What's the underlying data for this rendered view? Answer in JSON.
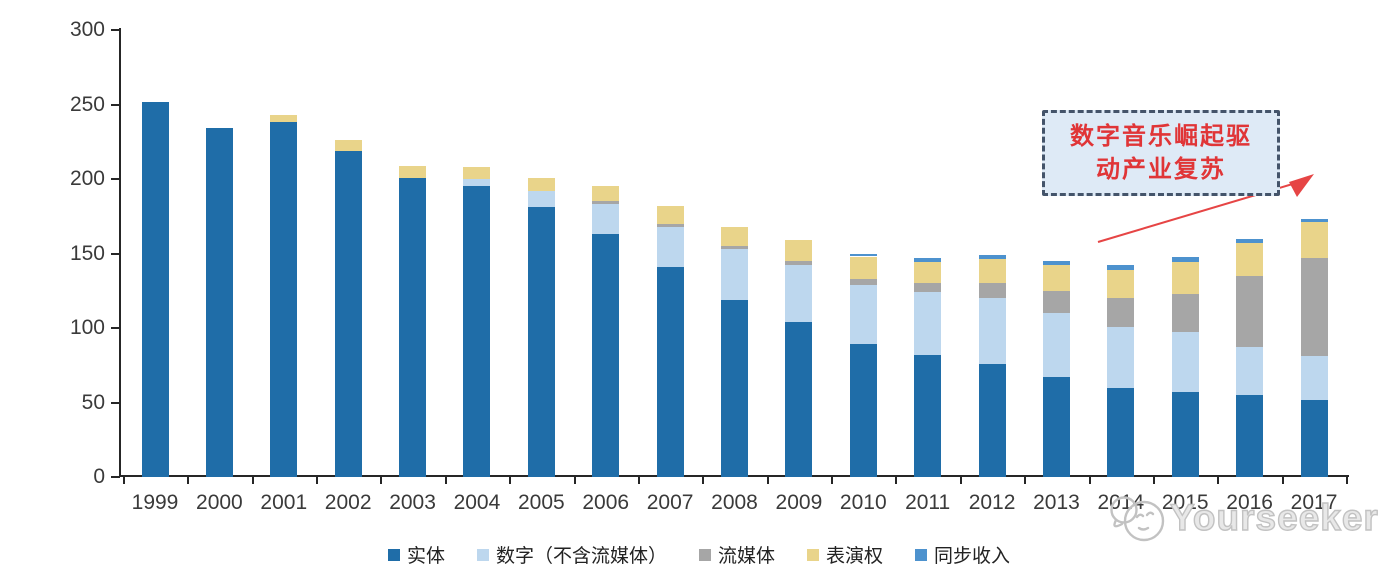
{
  "chart_data": {
    "type": "bar",
    "stacked": true,
    "title": "",
    "categories": [
      "1999",
      "2000",
      "2001",
      "2002",
      "2003",
      "2004",
      "2005",
      "2006",
      "2007",
      "2008",
      "2009",
      "2010",
      "2011",
      "2012",
      "2013",
      "2014",
      "2015",
      "2016",
      "2017"
    ],
    "series": [
      {
        "name": "实体",
        "color": "#1F6DA8",
        "values": [
          252,
          234,
          238,
          219,
          201,
          195,
          181,
          163,
          141,
          119,
          104,
          89,
          82,
          76,
          67,
          60,
          57,
          55,
          52
        ]
      },
      {
        "name": "数字（不含流媒体）",
        "color": "#BDD7EE",
        "values": [
          0,
          0,
          0,
          0,
          0,
          5,
          11,
          20,
          27,
          34,
          38,
          40,
          42,
          44,
          43,
          41,
          40,
          32,
          29
        ]
      },
      {
        "name": "流媒体",
        "color": "#A6A6A6",
        "values": [
          0,
          0,
          0,
          0,
          0,
          0,
          0,
          2,
          2,
          2,
          3,
          4,
          6,
          10,
          15,
          19,
          26,
          48,
          66
        ]
      },
      {
        "name": "表演权",
        "color": "#E9D48A",
        "values": [
          0,
          0,
          5,
          7,
          8,
          8,
          9,
          10,
          12,
          13,
          14,
          15,
          14,
          16,
          17,
          19,
          21,
          22,
          24
        ]
      },
      {
        "name": "同步收入",
        "color": "#4D92CE",
        "values": [
          0,
          0,
          0,
          0,
          0,
          0,
          0,
          0,
          0,
          0,
          0,
          2,
          3,
          3,
          3,
          3,
          4,
          3,
          2
        ]
      }
    ],
    "ylim": [
      0,
      300
    ],
    "yticks": [
      0,
      50,
      100,
      150,
      200,
      250,
      300
    ],
    "xlabel": "",
    "ylabel": "",
    "grid": false,
    "legend_position": "bottom",
    "axis_color": "#262626",
    "tick_label_color": "#3a3a3a"
  },
  "annotation": {
    "lines": [
      "数字音乐崛起驱",
      "动产业复苏"
    ],
    "full_text": "数字音乐崛起驱动产业复苏",
    "fill_color": "#DEEAF6",
    "border_color": "#44546A",
    "text_color": "#E03537",
    "arrow_color": "#E64545"
  },
  "watermark": {
    "text": "Yourseeker",
    "logo_icon": "speech-bubbles-logo-icon",
    "color": "#c2c2c2"
  }
}
